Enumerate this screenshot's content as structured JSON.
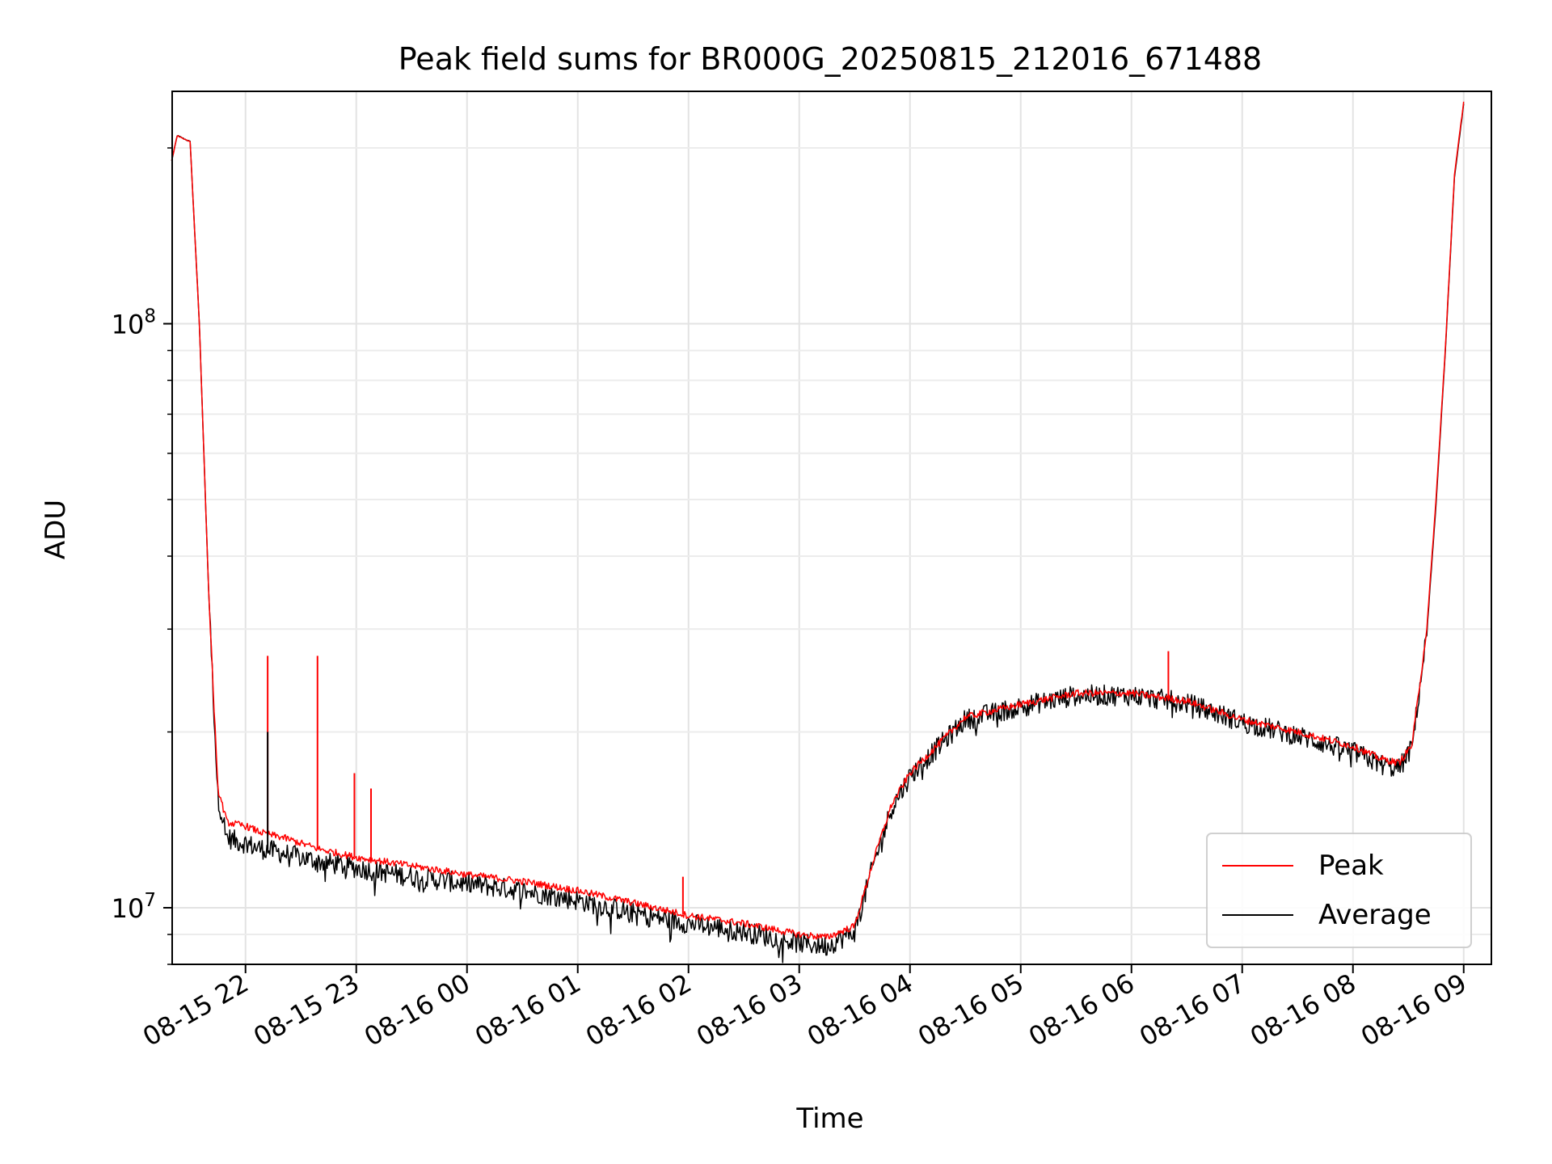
{
  "chart_data": {
    "type": "line",
    "title": "Peak field sums for BR000G_20250815_212016_671488",
    "xlabel": "Time",
    "ylabel": "ADU",
    "yscale": "log",
    "ylim": [
      8000000,
      250000000
    ],
    "xlim": [
      "2025-08-15 21:20:16",
      "2025-08-16 09:15:00"
    ],
    "x_ticks": [
      "08-15 22",
      "08-15 23",
      "08-16 00",
      "08-16 01",
      "08-16 02",
      "08-16 03",
      "08-16 04",
      "08-16 05",
      "08-16 06",
      "08-16 07",
      "08-16 08",
      "08-16 09"
    ],
    "y_ticks": [
      {
        "label_base": "10",
        "label_exp": "7",
        "value": 10000000
      },
      {
        "label_base": "10",
        "label_exp": "8",
        "value": 100000000
      }
    ],
    "grid": true,
    "legend_position": "lower right",
    "x": [
      "2025-08-15 21:20",
      "2025-08-15 21:23",
      "2025-08-15 21:30",
      "2025-08-15 21:35",
      "2025-08-15 21:40",
      "2025-08-15 21:45",
      "2025-08-15 21:50",
      "2025-08-15 21:55",
      "2025-08-15 22:00",
      "2025-08-15 22:05",
      "2025-08-15 22:10",
      "2025-08-15 22:20",
      "2025-08-15 22:30",
      "2025-08-15 22:40",
      "2025-08-15 23:00",
      "2025-08-15 23:30",
      "2025-08-16 00:00",
      "2025-08-16 00:30",
      "2025-08-16 01:00",
      "2025-08-16 01:30",
      "2025-08-16 02:00",
      "2025-08-16 02:30",
      "2025-08-16 03:00",
      "2025-08-16 03:15",
      "2025-08-16 03:30",
      "2025-08-16 03:40",
      "2025-08-16 03:50",
      "2025-08-16 04:00",
      "2025-08-16 04:15",
      "2025-08-16 04:30",
      "2025-08-16 05:00",
      "2025-08-16 05:30",
      "2025-08-16 06:00",
      "2025-08-16 06:30",
      "2025-08-16 07:00",
      "2025-08-16 07:30",
      "2025-08-16 08:00",
      "2025-08-16 08:15",
      "2025-08-16 08:25",
      "2025-08-16 08:32",
      "2025-08-16 08:40",
      "2025-08-16 08:45",
      "2025-08-16 08:50",
      "2025-08-16 08:55",
      "2025-08-16 09:00"
    ],
    "series": [
      {
        "name": "Peak",
        "color": "#ff0000",
        "values": [
          190000000,
          210000000,
          205000000,
          100000000,
          35000000,
          16000000,
          14000000,
          13900000,
          13800000,
          13600000,
          13400000,
          13200000,
          12900000,
          12600000,
          12200000,
          11800000,
          11400000,
          11100000,
          10700000,
          10200000,
          9700000,
          9400000,
          9000000,
          8900000,
          9300000,
          12000000,
          15000000,
          17000000,
          19000000,
          21200000,
          22300000,
          23300000,
          23300000,
          22600000,
          21000000,
          20000000,
          18900000,
          18000000,
          17700000,
          19000000,
          30000000,
          50000000,
          90000000,
          180000000,
          240000000
        ]
      },
      {
        "name": "Average",
        "color": "#000000",
        "values": [
          190000000,
          210000000,
          205000000,
          100000000,
          35000000,
          15500000,
          13200000,
          13000000,
          12900000,
          12700000,
          12600000,
          12400000,
          12200000,
          12000000,
          11700000,
          11300000,
          11000000,
          10700000,
          10300000,
          9800000,
          9400000,
          9100000,
          8700000,
          8600000,
          9100000,
          11800000,
          14800000,
          16800000,
          18800000,
          21000000,
          22100000,
          23100000,
          23100000,
          22400000,
          20800000,
          19700000,
          18500000,
          17600000,
          17300000,
          18800000,
          29500000,
          49000000,
          89000000,
          178000000,
          238000000
        ]
      }
    ],
    "spikes": [
      {
        "series": "Peak",
        "x": "2025-08-15 22:12",
        "y": 27000000
      },
      {
        "series": "Average",
        "x": "2025-08-15 22:12",
        "y": 20000000
      },
      {
        "series": "Peak",
        "x": "2025-08-15 22:39",
        "y": 27000000
      },
      {
        "series": "Peak",
        "x": "2025-08-15 22:59",
        "y": 17000000
      },
      {
        "series": "Peak",
        "x": "2025-08-15 23:08",
        "y": 16000000
      },
      {
        "series": "Peak",
        "x": "2025-08-16 01:57",
        "y": 11300000
      },
      {
        "series": "Peak",
        "x": "2025-08-16 06:20",
        "y": 27500000
      }
    ]
  }
}
